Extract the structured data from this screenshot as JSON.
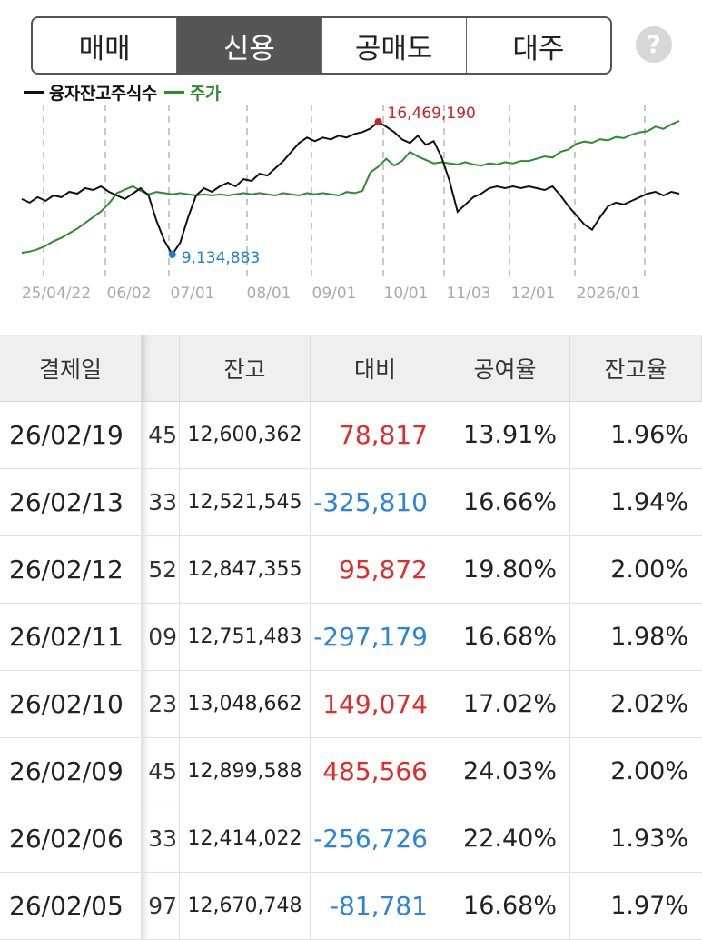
{
  "tabs": [
    {
      "label": "매매",
      "active": false
    },
    {
      "label": "신용",
      "active": true
    },
    {
      "label": "공매도",
      "active": false
    },
    {
      "label": "대주",
      "active": false
    }
  ],
  "help": {
    "label": "?"
  },
  "legend": [
    {
      "name": "융자잔고주식수",
      "color": "#111111"
    },
    {
      "name": "주가",
      "color": "#2e8b2e"
    }
  ],
  "chart_data": {
    "type": "line",
    "x_ticks": [
      "25/04/22",
      "06/02",
      "07/01",
      "08/01",
      "09/01",
      "10/01",
      "11/03",
      "12/01",
      "2026/01"
    ],
    "max_label": "16,469,190",
    "min_label": "9,134,883",
    "series": [
      {
        "name": "융자잔고주식수",
        "color": "#111111",
        "values": [
          12.2,
          12.0,
          12.3,
          12.1,
          12.4,
          12.3,
          12.6,
          12.5,
          12.8,
          12.7,
          12.9,
          12.6,
          12.4,
          12.2,
          12.5,
          12.8,
          12.4,
          11.0,
          9.9,
          9.13,
          9.8,
          11.2,
          12.4,
          12.8,
          12.6,
          12.9,
          13.1,
          12.9,
          13.3,
          13.2,
          13.6,
          13.5,
          13.9,
          14.3,
          14.8,
          15.3,
          15.6,
          15.4,
          15.6,
          15.5,
          15.7,
          15.6,
          15.8,
          15.9,
          16.1,
          16.47,
          16.2,
          15.9,
          15.5,
          15.3,
          15.7,
          15.2,
          15.4,
          14.5,
          13.2,
          11.5,
          11.9,
          12.3,
          12.5,
          12.8,
          12.9,
          12.8,
          12.9,
          12.8,
          12.9,
          12.8,
          12.7,
          12.9,
          12.4,
          11.8,
          11.3,
          10.8,
          10.5,
          11.2,
          11.8,
          12.0,
          11.9,
          12.1,
          12.3,
          12.5,
          12.6,
          12.4,
          12.6,
          12.5
        ]
      },
      {
        "name": "주가",
        "color": "#2e8b2e",
        "values": [
          100,
          101,
          103,
          106,
          110,
          113,
          117,
          121,
          126,
          131,
          136,
          143,
          152,
          155,
          158,
          154,
          151,
          153,
          152,
          151,
          152,
          151,
          150,
          151,
          150,
          151,
          150,
          151,
          152,
          151,
          152,
          151,
          150,
          152,
          151,
          150,
          152,
          151,
          152,
          151,
          150,
          153,
          152,
          154,
          170,
          175,
          182,
          176,
          180,
          188,
          184,
          181,
          178,
          179,
          178,
          177,
          179,
          177,
          176,
          178,
          177,
          179,
          178,
          180,
          180,
          182,
          184,
          183,
          188,
          190,
          195,
          197,
          196,
          199,
          198,
          201,
          200,
          203,
          205,
          206,
          210,
          208,
          212,
          215
        ]
      }
    ]
  },
  "table": {
    "headers": {
      "date": "결제일",
      "hidden": "",
      "balance": "잔고",
      "diff": "대비",
      "short_ratio": "공여율",
      "balance_ratio": "잔고율"
    },
    "rows": [
      {
        "date": "26/02/19",
        "hidden": "45",
        "balance": "12,600,362",
        "diff": "78,817",
        "dir": "up",
        "short_ratio": "13.91%",
        "balance_ratio": "1.96%"
      },
      {
        "date": "26/02/13",
        "hidden": "33",
        "balance": "12,521,545",
        "diff": "-325,810",
        "dir": "down",
        "short_ratio": "16.66%",
        "balance_ratio": "1.94%"
      },
      {
        "date": "26/02/12",
        "hidden": "52",
        "balance": "12,847,355",
        "diff": "95,872",
        "dir": "up",
        "short_ratio": "19.80%",
        "balance_ratio": "2.00%"
      },
      {
        "date": "26/02/11",
        "hidden": "09",
        "balance": "12,751,483",
        "diff": "-297,179",
        "dir": "down",
        "short_ratio": "16.68%",
        "balance_ratio": "1.98%"
      },
      {
        "date": "26/02/10",
        "hidden": "23",
        "balance": "13,048,662",
        "diff": "149,074",
        "dir": "up",
        "short_ratio": "17.02%",
        "balance_ratio": "2.02%"
      },
      {
        "date": "26/02/09",
        "hidden": "45",
        "balance": "12,899,588",
        "diff": "485,566",
        "dir": "up",
        "short_ratio": "24.03%",
        "balance_ratio": "2.00%"
      },
      {
        "date": "26/02/06",
        "hidden": "33",
        "balance": "12,414,022",
        "diff": "-256,726",
        "dir": "down",
        "short_ratio": "22.40%",
        "balance_ratio": "1.93%"
      },
      {
        "date": "26/02/05",
        "hidden": "97",
        "balance": "12,670,748",
        "diff": "-81,781",
        "dir": "down",
        "short_ratio": "16.68%",
        "balance_ratio": "1.97%"
      }
    ]
  }
}
